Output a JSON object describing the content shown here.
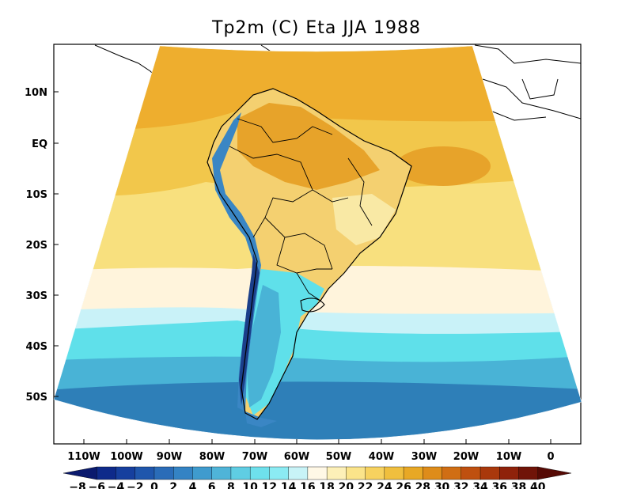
{
  "title": "Tp2m (C) Eta JJA 1988",
  "map": {
    "variable": "Tp2m",
    "units": "C",
    "model": "Eta",
    "season": "JJA",
    "year": "1988",
    "region": "South America",
    "lat_labels": [
      "10N",
      "EQ",
      "10S",
      "20S",
      "30S",
      "40S",
      "50S"
    ],
    "lon_labels": [
      "110W",
      "100W",
      "90W",
      "80W",
      "70W",
      "60W",
      "50W",
      "40W",
      "30W",
      "20W",
      "10W",
      "0"
    ]
  },
  "colorbar": {
    "labels": [
      "-8",
      "-6",
      "-4",
      "-2",
      "0",
      "2",
      "4",
      "6",
      "8",
      "10",
      "12",
      "14",
      "16",
      "18",
      "20",
      "22",
      "24",
      "26",
      "28",
      "30",
      "32",
      "34",
      "36",
      "38",
      "40"
    ],
    "colors": [
      "#0a1a6e",
      "#0e2a8a",
      "#163f9e",
      "#1f56ac",
      "#2a6cb8",
      "#3483c4",
      "#3f9bce",
      "#4fb4d8",
      "#5fcde3",
      "#6ee0ec",
      "#8bebf3",
      "#c8f3f7",
      "#fff8e6",
      "#fdf0b8",
      "#fbe48a",
      "#f7d25f",
      "#f0bf3e",
      "#e8a825",
      "#de8c1a",
      "#d06e14",
      "#bf5010",
      "#a9380c",
      "#8f220a",
      "#701408",
      "#560a05"
    ]
  },
  "palette": {
    "ocean_cold_deep": "#2e7fb8",
    "ocean_cold": "#49b3d6",
    "ocean_cyan": "#5fe0ea",
    "ocean_pale": "#c9f2f8",
    "ocean_cream": "#fff4dc",
    "ocean_yellow": "#f8e07e",
    "ocean_gold": "#f2c74b",
    "ocean_orange": "#eeae2e",
    "land_warm": "#e7a32a",
    "land_mid": "#f4d070",
    "land_cool": "#f9e9a5",
    "andes_dark": "#1b3f8a",
    "andes_mid": "#3a86c4",
    "outline": "#000000"
  }
}
